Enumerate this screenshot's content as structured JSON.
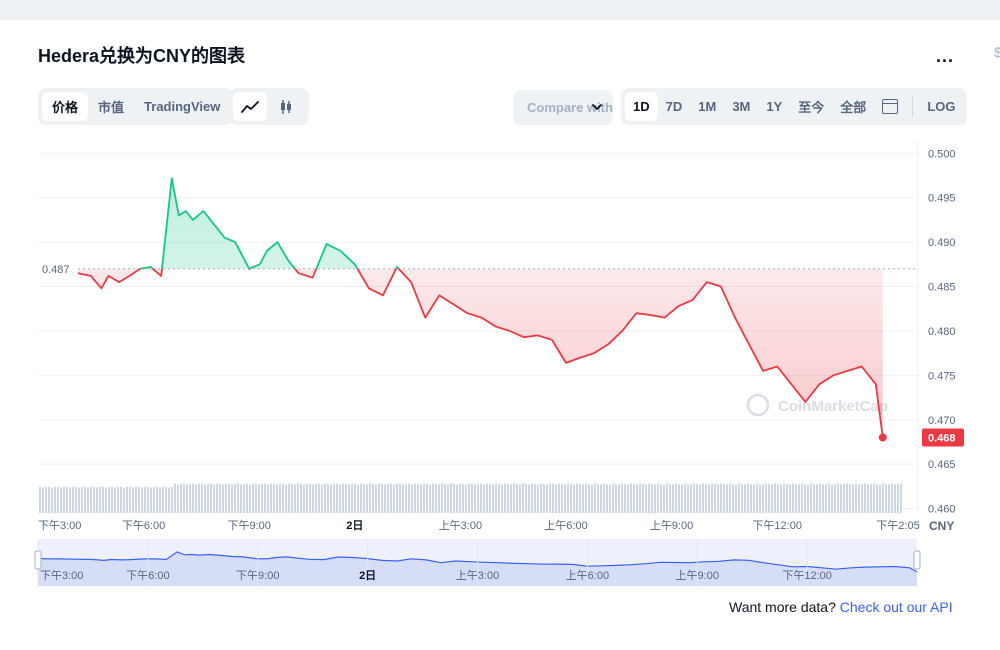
{
  "header": {
    "title": "Hedera兑换为CNY的图表",
    "more_label": "..."
  },
  "view_tabs": [
    "价格",
    "市值",
    "TradingView"
  ],
  "chart_style_icons": [
    "line-chart-icon",
    "candlestick-icon"
  ],
  "compare": {
    "label": "Compare with"
  },
  "range_tabs": [
    "1D",
    "7D",
    "1M",
    "3M",
    "1Y",
    "至今",
    "全部"
  ],
  "log_label": "LOG",
  "edge_glyph": "$",
  "watermark": "CoinMarketCap",
  "footer": {
    "text": "Want more data?",
    "link": "Check out our API"
  },
  "colors": {
    "up": "#16c784",
    "down": "#ea3943",
    "volume": "#cfd6e4",
    "nav": "#3861fb"
  },
  "chart_data": {
    "type": "line",
    "currency": "CNY",
    "ylim": [
      0.4595,
      0.5015
    ],
    "y_ticks": [
      "0.500",
      "0.495",
      "0.490",
      "0.485",
      "0.480",
      "0.475",
      "0.470",
      "0.465",
      "0.460"
    ],
    "x_ticks": [
      "下午3:00",
      "下午6:00",
      "下午9:00",
      "2日",
      "上午3:00",
      "上午6:00",
      "上午9:00",
      "下午12:00",
      "下午2:05"
    ],
    "navigator_ticks": [
      "下午3:00",
      "下午6:00",
      "下午9:00",
      "2日",
      "上午3:00",
      "上午6:00",
      "上午9:00",
      "下午12:00"
    ],
    "x_unit_label": "CNY",
    "reference_value": 0.487,
    "reference_label": "0.487",
    "current_value": 0.468,
    "current_label": "0.468",
    "grid": true,
    "series": [
      {
        "x_hours": [
          0.0,
          0.3,
          0.6,
          1.0,
          1.5,
          1.8,
          2.0,
          2.3,
          2.6,
          2.9,
          3.2,
          3.5,
          3.8,
          4.0,
          4.2,
          4.4,
          4.7,
          5.0,
          5.3,
          5.6,
          6.0,
          6.3,
          6.5,
          6.8,
          7.1,
          7.4,
          7.8,
          8.2,
          8.6,
          9.0,
          9.4,
          9.8,
          10.2,
          10.6,
          11.0,
          11.4,
          11.8,
          12.2,
          12.6,
          13.0,
          13.4,
          13.8,
          14.2,
          14.6,
          15.0,
          15.4,
          15.8,
          16.2,
          16.6,
          17.0,
          17.4,
          17.8,
          18.2,
          18.6,
          19.0,
          19.4,
          19.8,
          20.2,
          20.6,
          21.0,
          21.4,
          21.8,
          22.2,
          22.6,
          23.0,
          23.4,
          23.8,
          24.0
        ],
        "values": [
          0.4874,
          0.4872,
          0.487,
          0.4866,
          0.4862,
          0.4848,
          0.4862,
          0.4855,
          0.4862,
          0.487,
          0.4872,
          0.4862,
          0.4972,
          0.493,
          0.4935,
          0.4925,
          0.4935,
          0.492,
          0.4905,
          0.49,
          0.487,
          0.4875,
          0.489,
          0.49,
          0.488,
          0.4865,
          0.486,
          0.4898,
          0.489,
          0.4875,
          0.4848,
          0.484,
          0.4872,
          0.4855,
          0.4815,
          0.484,
          0.483,
          0.482,
          0.4815,
          0.4805,
          0.48,
          0.4793,
          0.4795,
          0.479,
          0.4764,
          0.477,
          0.4775,
          0.4785,
          0.48,
          0.482,
          0.4818,
          0.4815,
          0.4828,
          0.4835,
          0.4855,
          0.485,
          0.4815,
          0.4785,
          0.4755,
          0.476,
          0.474,
          0.472,
          0.474,
          0.475,
          0.4755,
          0.476,
          0.474,
          0.468
        ]
      }
    ],
    "volume": {
      "before_jump": 0.55,
      "after_jump": 0.62,
      "jump_hour": 3.8
    }
  }
}
